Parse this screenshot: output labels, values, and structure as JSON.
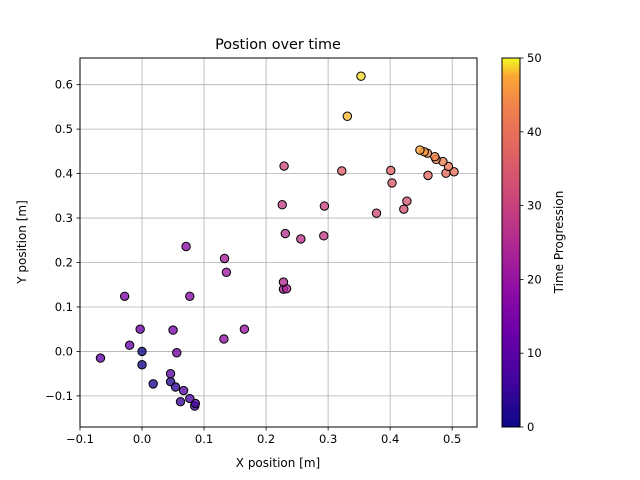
{
  "chart_data": {
    "type": "scatter",
    "title": "Postion over time",
    "xlabel": "X position [m]",
    "ylabel": "Y position [m]",
    "xlim": [
      -0.1,
      0.54
    ],
    "ylim": [
      -0.17,
      0.66
    ],
    "x_ticks": [
      -0.1,
      0.0,
      0.1,
      0.2,
      0.3,
      0.4,
      0.5
    ],
    "x_tick_labels": [
      "−0.1",
      "0.0",
      "0.1",
      "0.2",
      "0.3",
      "0.4",
      "0.5"
    ],
    "y_ticks": [
      -0.1,
      0.0,
      0.1,
      0.2,
      0.3,
      0.4,
      0.5,
      0.6
    ],
    "y_tick_labels": [
      "−0.1",
      "0.0",
      "0.1",
      "0.2",
      "0.3",
      "0.4",
      "0.5",
      "0.6"
    ],
    "grid": true,
    "colorbar": {
      "label": "Time Progression",
      "range": [
        0,
        50
      ],
      "ticks": [
        0,
        10,
        20,
        30,
        40,
        50
      ],
      "tick_labels": [
        "0",
        "10",
        "20",
        "30",
        "40",
        "50"
      ],
      "colormap": "plasma"
    },
    "points": [
      {
        "x": 0.0,
        "y": 0.0,
        "t": 0
      },
      {
        "x": 0.0,
        "y": -0.03,
        "t": 1
      },
      {
        "x": 0.018,
        "y": -0.073,
        "t": 2
      },
      {
        "x": 0.046,
        "y": -0.068,
        "t": 3
      },
      {
        "x": 0.054,
        "y": -0.08,
        "t": 4
      },
      {
        "x": 0.062,
        "y": -0.113,
        "t": 5
      },
      {
        "x": 0.085,
        "y": -0.123,
        "t": 6
      },
      {
        "x": 0.086,
        "y": -0.117,
        "t": 7
      },
      {
        "x": 0.077,
        "y": -0.106,
        "t": 8
      },
      {
        "x": 0.067,
        "y": -0.088,
        "t": 9
      },
      {
        "x": 0.046,
        "y": -0.05,
        "t": 10
      },
      {
        "x": -0.067,
        "y": -0.015,
        "t": 11
      },
      {
        "x": -0.02,
        "y": 0.014,
        "t": 12
      },
      {
        "x": -0.003,
        "y": 0.05,
        "t": 13
      },
      {
        "x": 0.056,
        "y": -0.003,
        "t": 14
      },
      {
        "x": 0.05,
        "y": 0.048,
        "t": 15
      },
      {
        "x": -0.028,
        "y": 0.124,
        "t": 16
      },
      {
        "x": 0.077,
        "y": 0.124,
        "t": 17
      },
      {
        "x": 0.071,
        "y": 0.236,
        "t": 18
      },
      {
        "x": 0.132,
        "y": 0.028,
        "t": 19
      },
      {
        "x": 0.165,
        "y": 0.05,
        "t": 20
      },
      {
        "x": 0.136,
        "y": 0.178,
        "t": 21
      },
      {
        "x": 0.133,
        "y": 0.209,
        "t": 22
      },
      {
        "x": 0.228,
        "y": 0.14,
        "t": 23
      },
      {
        "x": 0.233,
        "y": 0.141,
        "t": 24
      },
      {
        "x": 0.228,
        "y": 0.156,
        "t": 25
      },
      {
        "x": 0.231,
        "y": 0.265,
        "t": 26
      },
      {
        "x": 0.256,
        "y": 0.253,
        "t": 27
      },
      {
        "x": 0.293,
        "y": 0.26,
        "t": 28
      },
      {
        "x": 0.226,
        "y": 0.33,
        "t": 29
      },
      {
        "x": 0.294,
        "y": 0.327,
        "t": 30
      },
      {
        "x": 0.229,
        "y": 0.417,
        "t": 31
      },
      {
        "x": 0.378,
        "y": 0.311,
        "t": 32
      },
      {
        "x": 0.422,
        "y": 0.32,
        "t": 33
      },
      {
        "x": 0.427,
        "y": 0.338,
        "t": 34
      },
      {
        "x": 0.403,
        "y": 0.379,
        "t": 35
      },
      {
        "x": 0.322,
        "y": 0.406,
        "t": 36
      },
      {
        "x": 0.401,
        "y": 0.407,
        "t": 37
      },
      {
        "x": 0.461,
        "y": 0.396,
        "t": 38
      },
      {
        "x": 0.49,
        "y": 0.401,
        "t": 39
      },
      {
        "x": 0.503,
        "y": 0.404,
        "t": 40
      },
      {
        "x": 0.494,
        "y": 0.416,
        "t": 41
      },
      {
        "x": 0.485,
        "y": 0.427,
        "t": 42
      },
      {
        "x": 0.474,
        "y": 0.432,
        "t": 43
      },
      {
        "x": 0.472,
        "y": 0.438,
        "t": 44
      },
      {
        "x": 0.46,
        "y": 0.446,
        "t": 45
      },
      {
        "x": 0.455,
        "y": 0.449,
        "t": 46
      },
      {
        "x": 0.448,
        "y": 0.453,
        "t": 47
      },
      {
        "x": 0.331,
        "y": 0.529,
        "t": 48
      },
      {
        "x": 0.353,
        "y": 0.619,
        "t": 49
      }
    ]
  }
}
